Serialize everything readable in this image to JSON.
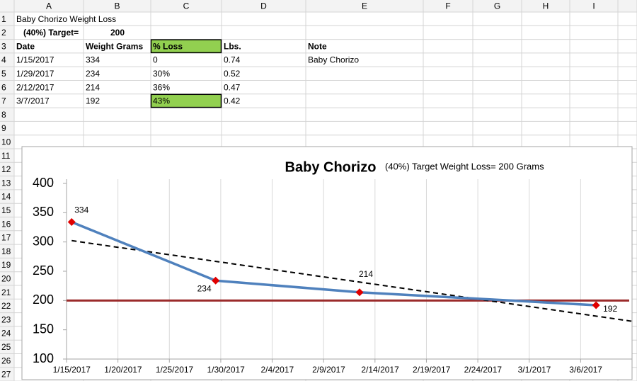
{
  "sheet": {
    "columns": [
      "A",
      "B",
      "C",
      "D",
      "E",
      "F",
      "G",
      "H",
      "I"
    ],
    "row_numbers": [
      1,
      2,
      3,
      4,
      5,
      6,
      7,
      8,
      9,
      10,
      11,
      12,
      13,
      14,
      15,
      16,
      17,
      18,
      19,
      20,
      21,
      22,
      23,
      24,
      25,
      26,
      27
    ],
    "rows": [
      {
        "A": "Baby Chorizo Weight Loss"
      },
      {
        "A": "(40%) Target=",
        "B": "200"
      },
      {
        "A": "Date",
        "B": "Weight Grams",
        "C": "% Loss",
        "D": "Lbs.",
        "E": "Note"
      },
      {
        "A": "1/15/2017",
        "B": "334",
        "C": "0",
        "D": "0.74",
        "E": "Baby Chorizo"
      },
      {
        "A": "1/29/2017",
        "B": "234",
        "C": "30%",
        "D": "0.52"
      },
      {
        "A": "2/12/2017",
        "B": "214",
        "C": "36%",
        "D": "0.47"
      },
      {
        "A": "3/7/2017",
        "B": "192",
        "C": "43%",
        "D": "0.42"
      }
    ]
  },
  "chart_data": {
    "type": "line",
    "title": "Baby Chorizo",
    "subtitle": "(40%) Target Weight Loss= 200 Grams",
    "x": [
      "1/15/2017",
      "1/29/2017",
      "2/12/2017",
      "3/7/2017"
    ],
    "series": [
      {
        "color": "#4f81bd",
        "marker_color": "#e00000",
        "values": [
          334,
          234,
          214,
          192
        ]
      }
    ],
    "target_line": {
      "value": 200,
      "color": "#9b2b2b"
    },
    "trendline": "linear",
    "xlim": [
      "1/15/2017",
      "3/11/2017"
    ],
    "xticks": [
      "1/15/2017",
      "1/20/2017",
      "1/25/2017",
      "1/30/2017",
      "2/4/2017",
      "2/9/2017",
      "2/14/2017",
      "2/19/2017",
      "2/24/2017",
      "3/1/2017",
      "3/6/2017"
    ],
    "ylim": [
      100,
      400
    ],
    "yticks": [
      100,
      150,
      200,
      250,
      300,
      350,
      400
    ],
    "grid": "x"
  }
}
